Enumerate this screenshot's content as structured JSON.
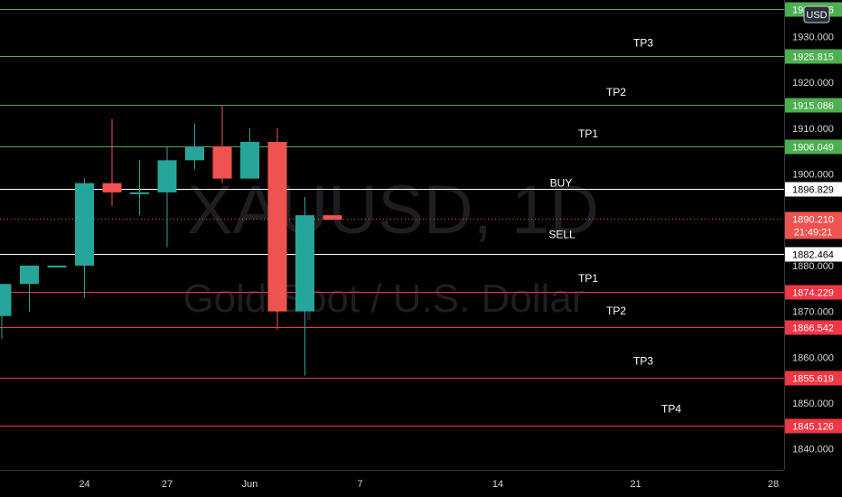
{
  "chart_data": {
    "type": "candlestick",
    "title": "XAUUSD, 1D",
    "subtitle": "Gold Spot / U.S. Dollar",
    "currency": "USD",
    "y_range": [
      1836,
      1937
    ],
    "y_ticks": [
      "1840.000",
      "1850.000",
      "1860.000",
      "1870.000",
      "1880.000",
      "1890.000",
      "1900.000",
      "1910.000",
      "1920.000",
      "1930.000"
    ],
    "x_ticks": [
      {
        "label": "24",
        "day": 3
      },
      {
        "label": "27",
        "day": 6
      },
      {
        "label": "Jun",
        "day": 9
      },
      {
        "label": "7",
        "day": 13
      },
      {
        "label": "14",
        "day": 18
      },
      {
        "label": "21",
        "day": 23
      },
      {
        "label": "28",
        "day": 28
      }
    ],
    "candles": [
      {
        "day": 0,
        "open": 1869,
        "high": 1876,
        "low": 1864,
        "close": 1876
      },
      {
        "day": 1,
        "open": 1876,
        "high": 1880,
        "low": 1870,
        "close": 1880
      },
      {
        "day": 2,
        "open": 1880,
        "high": 1880,
        "low": 1880,
        "close": 1880
      },
      {
        "day": 3,
        "open": 1880,
        "high": 1899,
        "low": 1873,
        "close": 1898
      },
      {
        "day": 4,
        "open": 1898,
        "high": 1912,
        "low": 1893,
        "close": 1896
      },
      {
        "day": 5,
        "open": 1896,
        "high": 1903,
        "low": 1891,
        "close": 1896
      },
      {
        "day": 6,
        "open": 1896,
        "high": 1906,
        "low": 1884,
        "close": 1903
      },
      {
        "day": 7,
        "open": 1903,
        "high": 1911,
        "low": 1901,
        "close": 1906
      },
      {
        "day": 8,
        "open": 1906,
        "high": 1915,
        "low": 1898,
        "close": 1899
      },
      {
        "day": 9,
        "open": 1899,
        "high": 1910,
        "low": 1899,
        "close": 1907
      },
      {
        "day": 10,
        "open": 1907,
        "high": 1910,
        "low": 1866,
        "close": 1870
      },
      {
        "day": 11,
        "open": 1870,
        "high": 1895,
        "low": 1856,
        "close": 1891
      },
      {
        "day": 12,
        "open": 1891,
        "high": 1891,
        "low": 1890,
        "close": 1890
      }
    ],
    "levels": [
      {
        "price": 1936.106,
        "label": "1936.106",
        "annotation": "",
        "type": "tp"
      },
      {
        "price": 1925.815,
        "label": "1925.815",
        "annotation": "TP3",
        "type": "tp"
      },
      {
        "price": 1915.086,
        "label": "1915.086",
        "annotation": "TP2",
        "type": "tp"
      },
      {
        "price": 1906.049,
        "label": "1906.049",
        "annotation": "TP1",
        "type": "tp"
      },
      {
        "price": 1896.829,
        "label": "1896.829",
        "annotation": "BUY",
        "type": "entry"
      },
      {
        "price": 1882.464,
        "label": "1882.464",
        "annotation": "SELL",
        "type": "entry"
      },
      {
        "price": 1874.229,
        "label": "1874.229",
        "annotation": "TP1",
        "type": "sl"
      },
      {
        "price": 1866.542,
        "label": "1866.542",
        "annotation": "TP2",
        "type": "sl"
      },
      {
        "price": 1855.619,
        "label": "1855.619",
        "annotation": "TP3",
        "type": "sl"
      },
      {
        "price": 1845.126,
        "label": "1845.126",
        "annotation": "TP4",
        "type": "sl"
      }
    ],
    "current_price": {
      "price": 1890.21,
      "label": "1890.210",
      "countdown": "21:49:21"
    },
    "colors": {
      "up": "#26a69a",
      "down": "#ef5350",
      "tp_line": "#4caf50",
      "entry_line": "#ffffff",
      "sl_line": "#f23645",
      "background": "#000000",
      "axis_text": "#d1d4dc",
      "watermark": "#1e1e22"
    },
    "grid": false
  }
}
